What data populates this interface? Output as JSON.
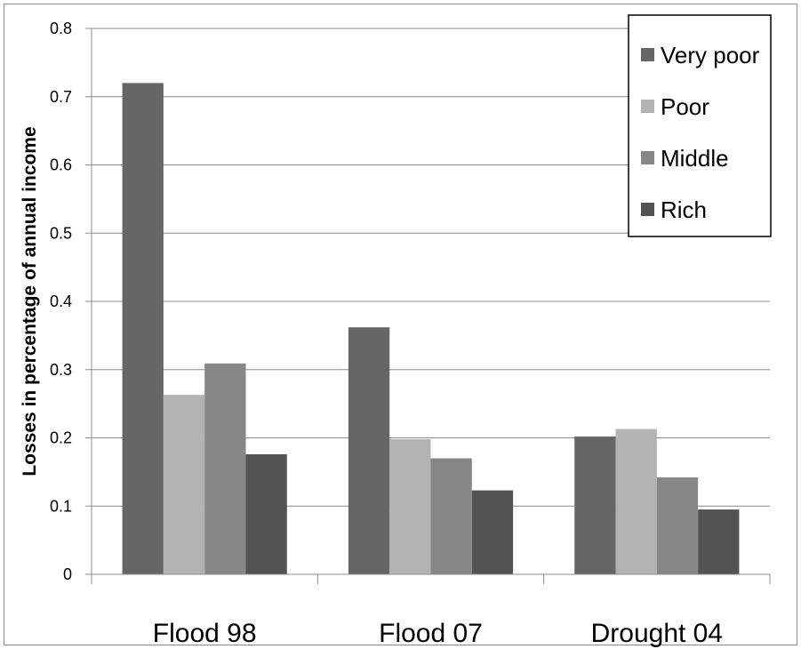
{
  "chart_data": {
    "type": "bar",
    "title": "",
    "xlabel": "",
    "ylabel": "Losses in percentage of annual income",
    "categories": [
      "Flood 98",
      "Flood 07",
      "Drought 04"
    ],
    "series": [
      {
        "name": "Very poor",
        "values": [
          0.72,
          0.362,
          0.202
        ],
        "color": "#666666"
      },
      {
        "name": "Poor",
        "values": [
          0.263,
          0.198,
          0.213
        ],
        "color": "#b3b3b3"
      },
      {
        "name": "Middle",
        "values": [
          0.309,
          0.17,
          0.142
        ],
        "color": "#878787"
      },
      {
        "name": "Rich",
        "values": [
          0.176,
          0.123,
          0.095
        ],
        "color": "#535353"
      }
    ],
    "ylim": [
      0,
      0.8
    ],
    "yticks": [
      "0",
      "0.1",
      "0.2",
      "0.3",
      "0.4",
      "0.5",
      "0.6",
      "0.7",
      "0.8"
    ],
    "grid": true,
    "legend_position": "top-right"
  }
}
